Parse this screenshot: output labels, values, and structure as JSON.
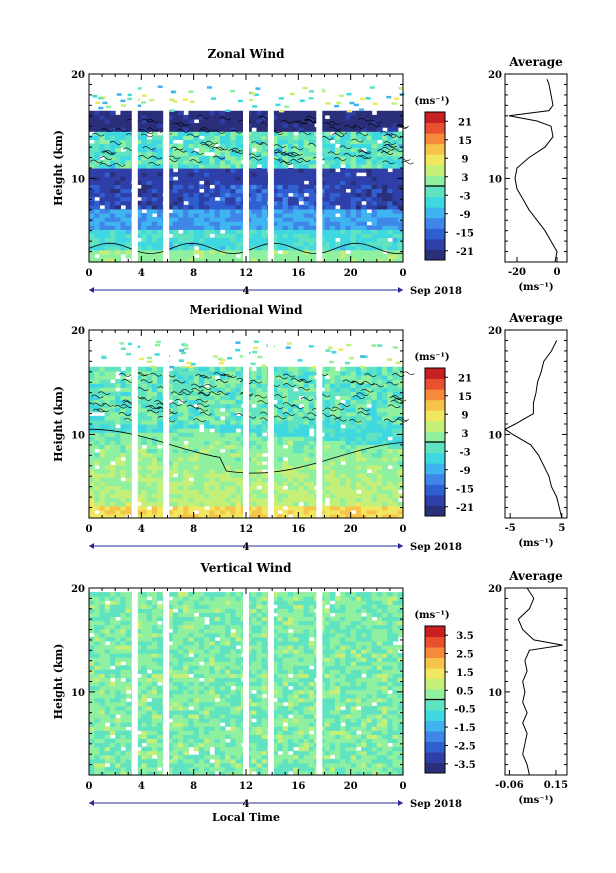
{
  "colors": {
    "scale": [
      "#2b2f7a",
      "#2f3fa8",
      "#2f5fd0",
      "#3f86e8",
      "#3fb4f0",
      "#3fd8e0",
      "#5fe3c0",
      "#8ff0a0",
      "#c4f07a",
      "#f0e860",
      "#f7c44a",
      "#f58a3a",
      "#e8502f",
      "#c82020"
    ]
  },
  "date_label": "Sep 2018",
  "x_common": {
    "tick_labels": [
      "0",
      "4",
      "8",
      "12",
      "16",
      "20",
      "0"
    ],
    "xlabel": "Local Time",
    "day_marker": "4"
  },
  "chart_data": [
    {
      "type": "heatmap",
      "title": "Zonal Wind",
      "ylabel": "Height (km)",
      "yticks": [
        "10",
        "20"
      ],
      "ylim": [
        2,
        20
      ],
      "xlim": [
        0,
        24
      ],
      "colorbar": {
        "unit": "(ms⁻¹)",
        "ticks": [
          "21",
          "15",
          "9",
          "3",
          "-3",
          "-9",
          "-15",
          "-21"
        ],
        "range": [
          -24,
          24
        ]
      },
      "gaps_hours": [
        3.5,
        5.9,
        12.0,
        13.9,
        17.6
      ],
      "field": {
        "kind": "zonal"
      },
      "average": {
        "title": "Average",
        "xlabel": "(ms⁻¹)",
        "xticks": [
          "-20",
          "0"
        ],
        "xlim": [
          -26,
          5
        ],
        "heights": [
          2,
          3,
          4,
          5,
          6,
          7,
          8,
          9,
          10,
          11,
          12,
          13,
          14,
          15,
          15.5,
          16,
          16.5,
          17,
          18,
          19,
          19.5
        ],
        "values": [
          -1,
          0,
          -3,
          -6,
          -10,
          -14,
          -17,
          -20,
          -21,
          -20,
          -14,
          -6,
          -2,
          -3,
          -10,
          -24,
          -4,
          -2,
          -3,
          -4,
          -5
        ]
      }
    },
    {
      "type": "heatmap",
      "title": "Meridional Wind",
      "ylabel": "Height (km)",
      "yticks": [
        "10",
        "20"
      ],
      "ylim": [
        2,
        20
      ],
      "xlim": [
        0,
        24
      ],
      "colorbar": {
        "unit": "(ms⁻¹)",
        "ticks": [
          "21",
          "15",
          "9",
          "3",
          "-3",
          "-9",
          "-15",
          "-21"
        ],
        "range": [
          -24,
          24
        ]
      },
      "gaps_hours": [
        3.5,
        5.9,
        12.0,
        13.9,
        17.6
      ],
      "field": {
        "kind": "meridional"
      },
      "average": {
        "title": "Average",
        "xlabel": "(ms⁻¹)",
        "xticks": [
          "-5",
          "5"
        ],
        "xlim": [
          -6,
          6
        ],
        "heights": [
          2,
          3,
          4,
          5,
          6,
          7,
          8,
          9,
          10,
          10.5,
          11,
          12,
          13,
          14,
          15,
          16,
          17,
          18,
          19
        ],
        "values": [
          5,
          4.5,
          4,
          3,
          2.5,
          1.5,
          0.5,
          -1,
          -4.5,
          -6,
          -4,
          -0.5,
          -0.5,
          0,
          0.3,
          1,
          1.5,
          3,
          4
        ]
      }
    },
    {
      "type": "heatmap",
      "title": "Vertical Wind",
      "ylabel": "Height (km)",
      "yticks": [
        "10",
        "20"
      ],
      "ylim": [
        2,
        20
      ],
      "xlim": [
        0,
        24
      ],
      "colorbar": {
        "unit": "(ms⁻¹)",
        "ticks": [
          "3.5",
          "2.5",
          "1.5",
          "0.5",
          "-0.5",
          "-1.5",
          "-2.5",
          "-3.5"
        ],
        "range": [
          -4,
          4
        ]
      },
      "gaps_hours": [
        3.5,
        5.9,
        12.0,
        13.9,
        17.6
      ],
      "field": {
        "kind": "vertical"
      },
      "average": {
        "title": "Average",
        "xlabel": "(ms⁻¹)",
        "xticks": [
          "-0.06",
          "0.15"
        ],
        "xlim": [
          -0.08,
          0.2
        ],
        "heights": [
          2,
          3,
          4,
          5,
          6,
          7,
          8,
          9,
          10,
          11,
          12,
          13,
          14,
          14.5,
          15,
          16,
          17,
          18,
          19,
          20
        ],
        "values": [
          0.03,
          0.02,
          0.0,
          0.01,
          0.02,
          0.0,
          0.02,
          0.0,
          0.01,
          0.0,
          0.02,
          0.01,
          0.03,
          0.18,
          0.05,
          0.0,
          -0.02,
          0.03,
          0.05,
          0.02
        ]
      }
    }
  ]
}
